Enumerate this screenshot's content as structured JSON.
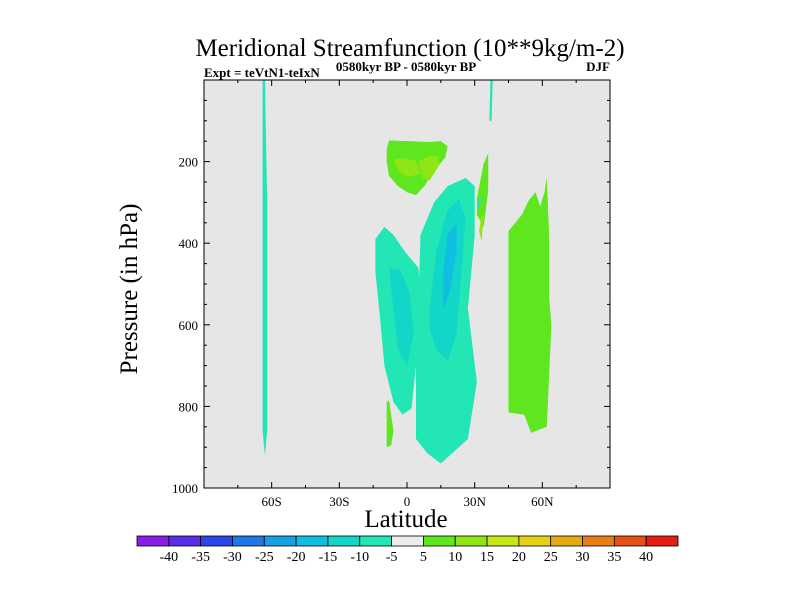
{
  "chart_data": {
    "type": "contour",
    "title": "Meridional Streamfunction (10**9kg/m-2)",
    "subtitle_left": "Expt = teVtN1-teIxN",
    "subtitle_center": "0580kyr BP - 0580kyr BP",
    "subtitle_right": "DJF",
    "xlabel": "Latitude",
    "ylabel": "Pressure (in hPa)",
    "xlim": [
      -90,
      90
    ],
    "ylim": [
      1000,
      0
    ],
    "x_ticks": [
      {
        "value": -60,
        "label": "60S"
      },
      {
        "value": -30,
        "label": "30S"
      },
      {
        "value": 0,
        "label": "0"
      },
      {
        "value": 30,
        "label": "30N"
      },
      {
        "value": 60,
        "label": "60N"
      }
    ],
    "y_ticks": [
      {
        "value": 200,
        "label": "200"
      },
      {
        "value": 400,
        "label": "400"
      },
      {
        "value": 600,
        "label": "600"
      },
      {
        "value": 800,
        "label": "800"
      },
      {
        "value": 1000,
        "label": "1000"
      }
    ],
    "background_color": "#e6e6e6",
    "colorbar": {
      "levels": [
        "-40",
        "-35",
        "-30",
        "-25",
        "-20",
        "-15",
        "-10",
        "-5",
        "5",
        "10",
        "15",
        "20",
        "25",
        "30",
        "35",
        "40"
      ],
      "colors": [
        "#8a1ee6",
        "#5a2ee6",
        "#2a46e6",
        "#1e78e6",
        "#16a0e6",
        "#10bee0",
        "#12d6c8",
        "#22e6b4",
        "#ebebeb",
        "#5ee61e",
        "#90e614",
        "#c8e614",
        "#e6d214",
        "#e6aa14",
        "#e67e14",
        "#e65214",
        "#e61e14"
      ]
    },
    "regions": [
      {
        "name": "sh-polar-strip",
        "color": "#22e6b4",
        "points": [
          [
            -64,
            0
          ],
          [
            -63,
            0
          ],
          [
            -62,
            300
          ],
          [
            -62,
            600
          ],
          [
            -62,
            860
          ],
          [
            -63,
            920
          ],
          [
            -64,
            860
          ],
          [
            -64,
            600
          ],
          [
            -64,
            300
          ]
        ]
      },
      {
        "name": "nh-strip-top",
        "color": "#22e6b4",
        "points": [
          [
            37,
            0
          ],
          [
            38,
            0
          ],
          [
            37.5,
            100
          ],
          [
            36.5,
            100
          ]
        ]
      },
      {
        "name": "sh-tropical-upper-positive",
        "color": "#5ee61e",
        "points": [
          [
            -8,
            148
          ],
          [
            2,
            150
          ],
          [
            10,
            152
          ],
          [
            15,
            150
          ],
          [
            18,
            162
          ],
          [
            17,
            190
          ],
          [
            12,
            222
          ],
          [
            8,
            258
          ],
          [
            4,
            282
          ],
          [
            0,
            275
          ],
          [
            -4,
            260
          ],
          [
            -8,
            235
          ],
          [
            -9,
            200
          ],
          [
            -9,
            170
          ]
        ]
      },
      {
        "name": "sh-tropical-upper-positive-core",
        "color": "#90e614",
        "points": [
          [
            -6,
            196
          ],
          [
            -2,
            192
          ],
          [
            4,
            198
          ],
          [
            6,
            230
          ],
          [
            0,
            238
          ],
          [
            -4,
            222
          ]
        ]
      },
      {
        "name": "sh-tropical-upper-positive-core2",
        "color": "#90e614",
        "points": [
          [
            5,
            200
          ],
          [
            10,
            185
          ],
          [
            14,
            188
          ],
          [
            14,
            212
          ],
          [
            10,
            246
          ],
          [
            7,
            240
          ]
        ]
      },
      {
        "name": "sh-tropical-negative-left",
        "color": "#22e6b4",
        "points": [
          [
            -14,
            390
          ],
          [
            -10,
            360
          ],
          [
            -6,
            380
          ],
          [
            -1,
            420
          ],
          [
            5,
            460
          ],
          [
            7,
            560
          ],
          [
            4,
            700
          ],
          [
            2,
            805
          ],
          [
            -2,
            820
          ],
          [
            -6,
            790
          ],
          [
            -10,
            700
          ],
          [
            -12,
            580
          ],
          [
            -14,
            470
          ]
        ]
      },
      {
        "name": "sh-tropical-negative-left-core",
        "color": "#12d6c8",
        "points": [
          [
            -8,
            460
          ],
          [
            -3,
            465
          ],
          [
            1,
            520
          ],
          [
            3,
            620
          ],
          [
            0,
            700
          ],
          [
            -4,
            660
          ],
          [
            -6,
            560
          ]
        ]
      },
      {
        "name": "nh-tropical-negative",
        "color": "#22e6b4",
        "points": [
          [
            6,
            380
          ],
          [
            12,
            300
          ],
          [
            18,
            260
          ],
          [
            26,
            240
          ],
          [
            30,
            260
          ],
          [
            30,
            380
          ],
          [
            27,
            560
          ],
          [
            31,
            740
          ],
          [
            27,
            880
          ],
          [
            20,
            915
          ],
          [
            15,
            940
          ],
          [
            9,
            915
          ],
          [
            4,
            880
          ],
          [
            4,
            700
          ],
          [
            5,
            560
          ]
        ]
      },
      {
        "name": "nh-tropical-negative-core",
        "color": "#12d6c8",
        "points": [
          [
            10,
            560
          ],
          [
            13,
            420
          ],
          [
            18,
            320
          ],
          [
            23,
            292
          ],
          [
            26,
            340
          ],
          [
            24,
            480
          ],
          [
            22,
            620
          ],
          [
            18,
            690
          ],
          [
            13,
            660
          ],
          [
            10,
            610
          ]
        ]
      },
      {
        "name": "nh-tropical-negative-core-inner",
        "color": "#10bee0",
        "points": [
          [
            16,
            470
          ],
          [
            18,
            380
          ],
          [
            22,
            350
          ],
          [
            22,
            420
          ],
          [
            19,
            520
          ],
          [
            16,
            560
          ]
        ]
      },
      {
        "name": "nh-subtropical-positive-upper",
        "color": "#5ee61e",
        "points": [
          [
            31,
            290
          ],
          [
            34,
            205
          ],
          [
            36,
            180
          ],
          [
            36,
            270
          ],
          [
            34,
            360
          ],
          [
            31,
            330
          ]
        ]
      },
      {
        "name": "nh-subtropical-positive-upper-core",
        "color": "#90e614",
        "points": [
          [
            32,
            370
          ],
          [
            33,
            330
          ],
          [
            34,
            335
          ],
          [
            33,
            395
          ]
        ]
      },
      {
        "name": "nh-midlat-positive",
        "color": "#5ee61e",
        "points": [
          [
            45,
            370
          ],
          [
            48,
            350
          ],
          [
            51,
            330
          ],
          [
            54,
            295
          ],
          [
            57,
            275
          ],
          [
            59,
            310
          ],
          [
            61,
            275
          ],
          [
            62,
            240
          ],
          [
            63,
            380
          ],
          [
            63,
            530
          ],
          [
            64,
            600
          ],
          [
            62,
            850
          ],
          [
            55,
            865
          ],
          [
            52,
            820
          ],
          [
            45,
            815
          ],
          [
            45,
            720
          ],
          [
            45,
            560
          ]
        ]
      },
      {
        "name": "sh-lower-positive",
        "color": "#5ee61e",
        "points": [
          [
            -9,
            790
          ],
          [
            -8,
            785
          ],
          [
            -6,
            860
          ],
          [
            -7,
            895
          ],
          [
            -9,
            900
          ]
        ]
      },
      {
        "name": "nh-lower-negative-small",
        "color": "#22e6b4",
        "points": [
          [
            31,
            300
          ],
          [
            33,
            285
          ],
          [
            32,
            320
          ]
        ]
      }
    ]
  }
}
